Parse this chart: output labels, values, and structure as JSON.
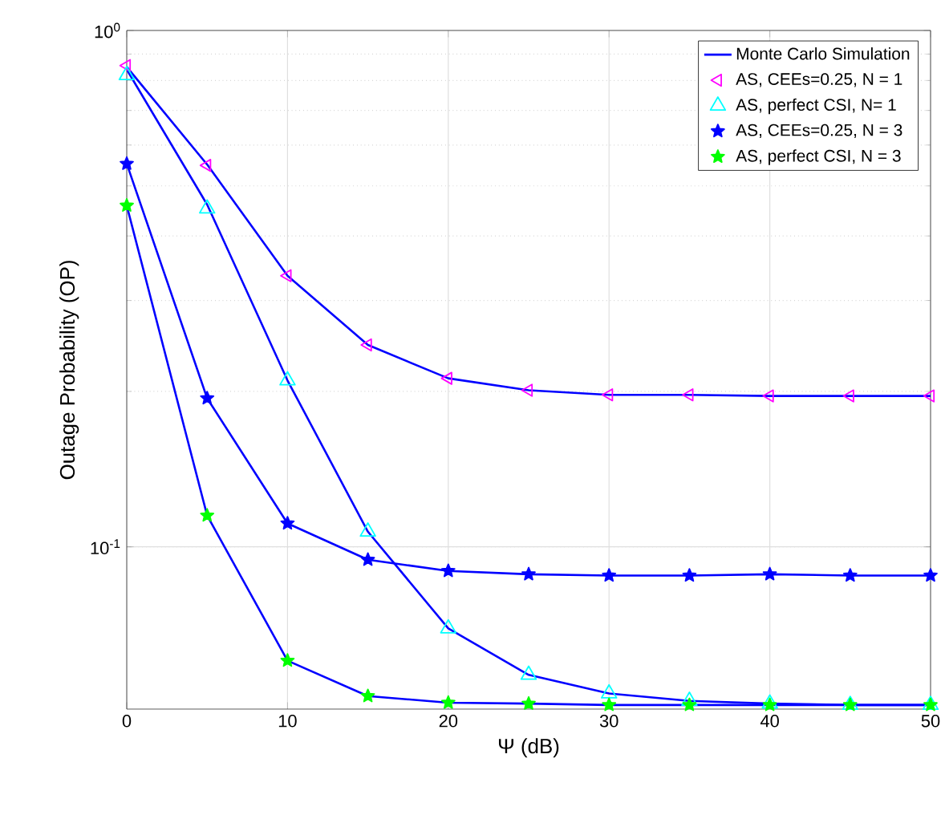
{
  "chart_data": {
    "type": "line",
    "xlabel": "Ψ (dB)",
    "ylabel": "Outage Probability (OP)",
    "x": [
      0,
      5,
      10,
      15,
      20,
      25,
      30,
      35,
      40,
      45,
      50
    ],
    "series": [
      {
        "name": "Monte Carlo Simulation",
        "color": "#0000ff",
        "marker": "none",
        "values": [
          0.85,
          0.55,
          0.335,
          0.246,
          0.212,
          0.201,
          0.197,
          0.197,
          0.196,
          0.196,
          0.196
        ]
      },
      {
        "color": "#0000ff",
        "marker": "none",
        "values": [
          0.84,
          0.46,
          0.21,
          0.107,
          0.0695,
          0.0565,
          0.052,
          0.0503,
          0.0497,
          0.0494,
          0.0494
        ]
      },
      {
        "color": "#0000ff",
        "marker": "none",
        "values": [
          0.552,
          0.194,
          0.111,
          0.0944,
          0.0898,
          0.0885,
          0.088,
          0.088,
          0.0885,
          0.088,
          0.088
        ]
      },
      {
        "color": "#0000ff",
        "marker": "none",
        "values": [
          0.458,
          0.115,
          0.0602,
          0.0514,
          0.0499,
          0.0497,
          0.0494,
          0.0494,
          0.0494,
          0.0494,
          0.0494
        ]
      },
      {
        "type": "scatter",
        "name": "AS, CEEs=0.25, N = 1",
        "color": "#ff00ff",
        "marker": "triangle-left",
        "values": [
          0.855,
          0.548,
          0.335,
          0.246,
          0.212,
          0.201,
          0.197,
          0.197,
          0.196,
          0.196,
          0.196
        ]
      },
      {
        "type": "scatter",
        "name": "AS, perfect CSI, N= 1",
        "color": "#00ffff",
        "marker": "triangle",
        "values": [
          0.819,
          0.452,
          0.21,
          0.107,
          0.0695,
          0.0565,
          0.052,
          0.0503,
          0.0497,
          0.0494,
          0.0494
        ]
      },
      {
        "type": "scatter",
        "name": "AS, CEEs=0.25, N = 3",
        "color": "#0000ff",
        "marker": "star",
        "values": [
          0.552,
          0.194,
          0.111,
          0.0944,
          0.0898,
          0.0885,
          0.088,
          0.088,
          0.0885,
          0.088,
          0.088
        ]
      },
      {
        "type": "scatter",
        "name": "AS, perfect CSI, N = 3",
        "color": "#00ff00",
        "marker": "star",
        "values": [
          0.458,
          0.115,
          0.0602,
          0.0514,
          0.0499,
          0.0497,
          0.0494,
          0.0494,
          0.0494,
          0.0494,
          0.0494
        ]
      }
    ],
    "log": "y",
    "xlim": [
      0,
      50
    ],
    "ylim": [
      0.0485,
      1
    ],
    "xticks": [
      0,
      10,
      20,
      30,
      40,
      50
    ],
    "yticks": [
      {
        "value": 0.1,
        "label": "10$^{-1}$"
      },
      {
        "value": 1,
        "label": "10$^{0}$"
      }
    ],
    "grid": true,
    "legend": "top right"
  }
}
